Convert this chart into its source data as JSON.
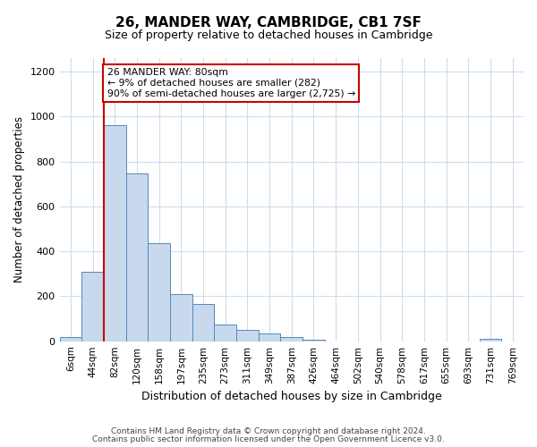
{
  "title": "26, MANDER WAY, CAMBRIDGE, CB1 7SF",
  "subtitle": "Size of property relative to detached houses in Cambridge",
  "xlabel": "Distribution of detached houses by size in Cambridge",
  "ylabel": "Number of detached properties",
  "footnote1": "Contains HM Land Registry data © Crown copyright and database right 2024.",
  "footnote2": "Contains public sector information licensed under the Open Government Licence v3.0.",
  "bin_labels": [
    "6sqm",
    "44sqm",
    "82sqm",
    "120sqm",
    "158sqm",
    "197sqm",
    "235sqm",
    "273sqm",
    "311sqm",
    "349sqm",
    "387sqm",
    "426sqm",
    "464sqm",
    "502sqm",
    "540sqm",
    "578sqm",
    "617sqm",
    "655sqm",
    "693sqm",
    "731sqm",
    "769sqm"
  ],
  "bar_heights": [
    20,
    310,
    960,
    745,
    435,
    210,
    165,
    75,
    50,
    33,
    18,
    8,
    0,
    0,
    0,
    0,
    0,
    0,
    0,
    10,
    0
  ],
  "bar_color": "#c8d8ed",
  "bar_edge_color": "#5588bb",
  "highlight_line_color": "#cc0000",
  "highlight_bar_idx": 2,
  "annotation_box_text": "26 MANDER WAY: 80sqm\n← 9% of detached houses are smaller (282)\n90% of semi-detached houses are larger (2,725) →",
  "annotation_box_facecolor": "white",
  "annotation_box_edgecolor": "#cc0000",
  "ylim": [
    0,
    1260
  ],
  "yticks": [
    0,
    200,
    400,
    600,
    800,
    1000,
    1200
  ],
  "grid_color": "#ccddee",
  "background_color": "white"
}
